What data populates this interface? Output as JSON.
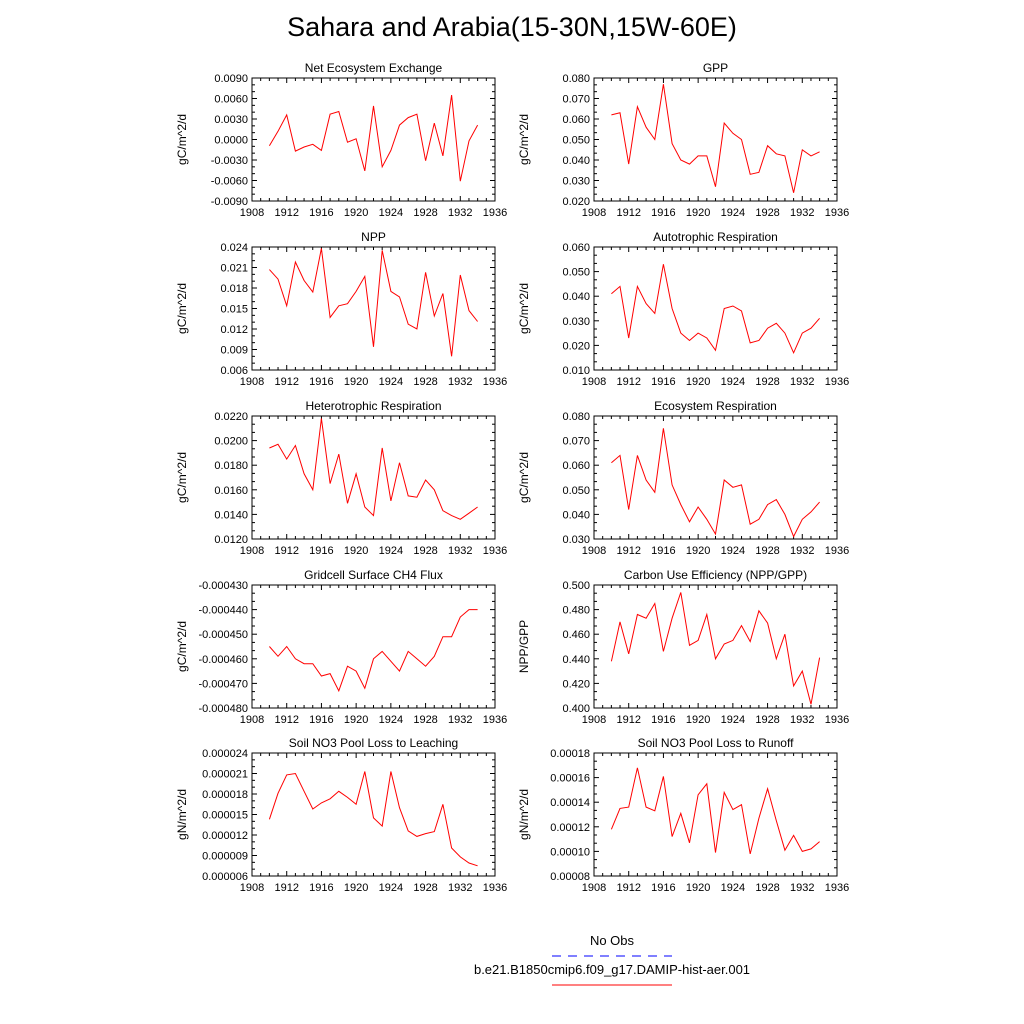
{
  "title": "Sahara and Arabia(15-30N,15W-60E)",
  "colors": {
    "model_line": "#ff0000",
    "obs_line": "#0000ff",
    "axis": "#000000"
  },
  "legend": {
    "obs_label": "No Obs",
    "model_label": "b.e21.B1850cmip6.f09_g17.DAMIP-hist-aer.001"
  },
  "chart_data": [
    {
      "type": "line",
      "title": "Net Ecosystem Exchange",
      "xlabel": "",
      "ylabel": "gC/m^2/d",
      "xlim": [
        1908,
        1936
      ],
      "ylim": [
        -0.009,
        0.009
      ],
      "xticks": [
        1908,
        1912,
        1916,
        1920,
        1924,
        1928,
        1932,
        1936
      ],
      "yticks": [
        -0.009,
        -0.006,
        -0.003,
        0.0,
        0.003,
        0.006,
        0.009
      ],
      "yticklabels": [
        "-0.0090",
        "-0.0060",
        "-0.0030",
        "0.0000",
        "0.0030",
        "0.0060",
        "0.0090"
      ],
      "x": [
        1910,
        1911,
        1912,
        1913,
        1914,
        1915,
        1916,
        1917,
        1918,
        1919,
        1920,
        1921,
        1922,
        1923,
        1924,
        1925,
        1926,
        1927,
        1928,
        1929,
        1930,
        1931,
        1932,
        1933,
        1934
      ],
      "series": [
        {
          "values": [
            -0.0009,
            0.0012,
            0.0036,
            -0.0017,
            -0.0011,
            -0.0007,
            -0.0016,
            0.0037,
            0.0041,
            -0.0004,
            0.0001,
            -0.0046,
            0.0049,
            -0.004,
            -0.0016,
            0.0021,
            0.0032,
            0.0037,
            -0.0031,
            0.0024,
            -0.0024,
            0.0065,
            -0.0061,
            -0.0002,
            0.0021
          ]
        }
      ]
    },
    {
      "type": "line",
      "title": "GPP",
      "xlabel": "",
      "ylabel": "gC/m^2/d",
      "xlim": [
        1908,
        1936
      ],
      "ylim": [
        0.02,
        0.08
      ],
      "xticks": [
        1908,
        1912,
        1916,
        1920,
        1924,
        1928,
        1932,
        1936
      ],
      "yticks": [
        0.02,
        0.03,
        0.04,
        0.05,
        0.06,
        0.07,
        0.08
      ],
      "yticklabels": [
        "0.020",
        "0.030",
        "0.040",
        "0.050",
        "0.060",
        "0.070",
        "0.080"
      ],
      "x": [
        1910,
        1911,
        1912,
        1913,
        1914,
        1915,
        1916,
        1917,
        1918,
        1919,
        1920,
        1921,
        1922,
        1923,
        1924,
        1925,
        1926,
        1927,
        1928,
        1929,
        1930,
        1931,
        1932,
        1933,
        1934
      ],
      "series": [
        {
          "values": [
            0.062,
            0.063,
            0.038,
            0.066,
            0.056,
            0.05,
            0.077,
            0.048,
            0.04,
            0.038,
            0.042,
            0.042,
            0.027,
            0.058,
            0.053,
            0.05,
            0.033,
            0.034,
            0.047,
            0.043,
            0.042,
            0.024,
            0.045,
            0.042,
            0.044
          ]
        }
      ]
    },
    {
      "type": "line",
      "title": "NPP",
      "xlabel": "",
      "ylabel": "gC/m^2/d",
      "xlim": [
        1908,
        1936
      ],
      "ylim": [
        0.006,
        0.024
      ],
      "xticks": [
        1908,
        1912,
        1916,
        1920,
        1924,
        1928,
        1932,
        1936
      ],
      "yticks": [
        0.006,
        0.009,
        0.012,
        0.015,
        0.018,
        0.021,
        0.024
      ],
      "yticklabels": [
        "0.006",
        "0.009",
        "0.012",
        "0.015",
        "0.018",
        "0.021",
        "0.024"
      ],
      "x": [
        1910,
        1911,
        1912,
        1913,
        1914,
        1915,
        1916,
        1917,
        1918,
        1919,
        1920,
        1921,
        1922,
        1923,
        1924,
        1925,
        1926,
        1927,
        1928,
        1929,
        1930,
        1931,
        1932,
        1933,
        1934
      ],
      "series": [
        {
          "values": [
            0.0207,
            0.0193,
            0.0154,
            0.0218,
            0.0191,
            0.0174,
            0.0238,
            0.0137,
            0.0154,
            0.0157,
            0.0175,
            0.0197,
            0.0094,
            0.0235,
            0.0175,
            0.0167,
            0.0127,
            0.012,
            0.0203,
            0.0139,
            0.0172,
            0.008,
            0.0199,
            0.0147,
            0.0131
          ]
        }
      ]
    },
    {
      "type": "line",
      "title": "Autotrophic Respiration",
      "xlabel": "",
      "ylabel": "gC/m^2/d",
      "xlim": [
        1908,
        1936
      ],
      "ylim": [
        0.01,
        0.06
      ],
      "xticks": [
        1908,
        1912,
        1916,
        1920,
        1924,
        1928,
        1932,
        1936
      ],
      "yticks": [
        0.01,
        0.02,
        0.03,
        0.04,
        0.05,
        0.06
      ],
      "yticklabels": [
        "0.010",
        "0.020",
        "0.030",
        "0.040",
        "0.050",
        "0.060"
      ],
      "x": [
        1910,
        1911,
        1912,
        1913,
        1914,
        1915,
        1916,
        1917,
        1918,
        1919,
        1920,
        1921,
        1922,
        1923,
        1924,
        1925,
        1926,
        1927,
        1928,
        1929,
        1930,
        1931,
        1932,
        1933,
        1934
      ],
      "series": [
        {
          "values": [
            0.041,
            0.044,
            0.023,
            0.044,
            0.037,
            0.033,
            0.053,
            0.035,
            0.025,
            0.022,
            0.025,
            0.023,
            0.018,
            0.035,
            0.036,
            0.034,
            0.021,
            0.022,
            0.027,
            0.029,
            0.025,
            0.017,
            0.025,
            0.027,
            0.031
          ]
        }
      ]
    },
    {
      "type": "line",
      "title": "Heterotrophic Respiration",
      "xlabel": "",
      "ylabel": "gC/m^2/d",
      "xlim": [
        1908,
        1936
      ],
      "ylim": [
        0.012,
        0.022
      ],
      "xticks": [
        1908,
        1912,
        1916,
        1920,
        1924,
        1928,
        1932,
        1936
      ],
      "yticks": [
        0.012,
        0.014,
        0.016,
        0.018,
        0.02,
        0.022
      ],
      "yticklabels": [
        "0.0120",
        "0.0140",
        "0.0160",
        "0.0180",
        "0.0200",
        "0.0220"
      ],
      "x": [
        1910,
        1911,
        1912,
        1913,
        1914,
        1915,
        1916,
        1917,
        1918,
        1919,
        1920,
        1921,
        1922,
        1923,
        1924,
        1925,
        1926,
        1927,
        1928,
        1929,
        1930,
        1931,
        1932,
        1933,
        1934
      ],
      "series": [
        {
          "values": [
            0.0194,
            0.0197,
            0.0185,
            0.0196,
            0.0173,
            0.016,
            0.0218,
            0.0165,
            0.0189,
            0.0149,
            0.0173,
            0.0146,
            0.0139,
            0.0194,
            0.0151,
            0.0182,
            0.0155,
            0.0154,
            0.0168,
            0.016,
            0.0143,
            0.0139,
            0.0136,
            0.0141,
            0.0146
          ]
        }
      ]
    },
    {
      "type": "line",
      "title": "Ecosystem Respiration",
      "xlabel": "",
      "ylabel": "gC/m^2/d",
      "xlim": [
        1908,
        1936
      ],
      "ylim": [
        0.03,
        0.08
      ],
      "xticks": [
        1908,
        1912,
        1916,
        1920,
        1924,
        1928,
        1932,
        1936
      ],
      "yticks": [
        0.03,
        0.04,
        0.05,
        0.06,
        0.07,
        0.08
      ],
      "yticklabels": [
        "0.030",
        "0.040",
        "0.050",
        "0.060",
        "0.070",
        "0.080"
      ],
      "x": [
        1910,
        1911,
        1912,
        1913,
        1914,
        1915,
        1916,
        1917,
        1918,
        1919,
        1920,
        1921,
        1922,
        1923,
        1924,
        1925,
        1926,
        1927,
        1928,
        1929,
        1930,
        1931,
        1932,
        1933,
        1934
      ],
      "series": [
        {
          "values": [
            0.061,
            0.064,
            0.042,
            0.064,
            0.054,
            0.049,
            0.075,
            0.052,
            0.044,
            0.037,
            0.043,
            0.038,
            0.032,
            0.054,
            0.051,
            0.052,
            0.036,
            0.038,
            0.044,
            0.046,
            0.04,
            0.031,
            0.038,
            0.041,
            0.045
          ]
        }
      ]
    },
    {
      "type": "line",
      "title": "Gridcell Surface CH4 Flux",
      "xlabel": "",
      "ylabel": "gC/m^2/d",
      "xlim": [
        1908,
        1936
      ],
      "ylim": [
        -0.00048,
        -0.00043
      ],
      "xticks": [
        1908,
        1912,
        1916,
        1920,
        1924,
        1928,
        1932,
        1936
      ],
      "yticks": [
        -0.00048,
        -0.00047,
        -0.00046,
        -0.00045,
        -0.00044,
        -0.00043
      ],
      "yticklabels": [
        "-0.000480",
        "-0.000470",
        "-0.000460",
        "-0.000450",
        "-0.000440",
        "-0.000430"
      ],
      "x": [
        1910,
        1911,
        1912,
        1913,
        1914,
        1915,
        1916,
        1917,
        1918,
        1919,
        1920,
        1921,
        1922,
        1923,
        1924,
        1925,
        1926,
        1927,
        1928,
        1929,
        1930,
        1931,
        1932,
        1933,
        1934
      ],
      "series": [
        {
          "values": [
            -0.000455,
            -0.000459,
            -0.000455,
            -0.00046,
            -0.000462,
            -0.000462,
            -0.000467,
            -0.000466,
            -0.000473,
            -0.000463,
            -0.000465,
            -0.000472,
            -0.00046,
            -0.000457,
            -0.000461,
            -0.000465,
            -0.000457,
            -0.00046,
            -0.000463,
            -0.000459,
            -0.000451,
            -0.000451,
            -0.000443,
            -0.00044,
            -0.00044
          ]
        }
      ]
    },
    {
      "type": "line",
      "title": "Carbon Use Efficiency (NPP/GPP)",
      "xlabel": "",
      "ylabel": "NPP/GPP",
      "xlim": [
        1908,
        1936
      ],
      "ylim": [
        0.4,
        0.5
      ],
      "xticks": [
        1908,
        1912,
        1916,
        1920,
        1924,
        1928,
        1932,
        1936
      ],
      "yticks": [
        0.4,
        0.42,
        0.44,
        0.46,
        0.48,
        0.5
      ],
      "yticklabels": [
        "0.400",
        "0.420",
        "0.440",
        "0.460",
        "0.480",
        "0.500"
      ],
      "x": [
        1910,
        1911,
        1912,
        1913,
        1914,
        1915,
        1916,
        1917,
        1918,
        1919,
        1920,
        1921,
        1922,
        1923,
        1924,
        1925,
        1926,
        1927,
        1928,
        1929,
        1930,
        1931,
        1932,
        1933,
        1934
      ],
      "series": [
        {
          "values": [
            0.438,
            0.47,
            0.444,
            0.476,
            0.473,
            0.485,
            0.446,
            0.473,
            0.494,
            0.451,
            0.455,
            0.476,
            0.44,
            0.452,
            0.455,
            0.467,
            0.454,
            0.479,
            0.469,
            0.44,
            0.46,
            0.418,
            0.43,
            0.403,
            0.441
          ]
        }
      ]
    },
    {
      "type": "line",
      "title": "Soil NO3 Pool Loss to Leaching",
      "xlabel": "",
      "ylabel": "gN/m^2/d",
      "xlim": [
        1908,
        1936
      ],
      "ylim": [
        6e-06,
        2.4e-05
      ],
      "xticks": [
        1908,
        1912,
        1916,
        1920,
        1924,
        1928,
        1932,
        1936
      ],
      "yticks": [
        6e-06,
        9e-06,
        1.2e-05,
        1.5e-05,
        1.8e-05,
        2.1e-05,
        2.4e-05
      ],
      "yticklabels": [
        "0.000006",
        "0.000009",
        "0.000012",
        "0.000015",
        "0.000018",
        "0.000021",
        "0.000024"
      ],
      "x": [
        1910,
        1911,
        1912,
        1913,
        1914,
        1915,
        1916,
        1917,
        1918,
        1919,
        1920,
        1921,
        1922,
        1923,
        1924,
        1925,
        1926,
        1927,
        1928,
        1929,
        1930,
        1931,
        1932,
        1933,
        1934
      ],
      "series": [
        {
          "values": [
            1.43e-05,
            1.81e-05,
            2.08e-05,
            2.1e-05,
            1.84e-05,
            1.58e-05,
            1.67e-05,
            1.73e-05,
            1.84e-05,
            1.75e-05,
            1.65e-05,
            2.13e-05,
            1.45e-05,
            1.33e-05,
            2.13e-05,
            1.6e-05,
            1.26e-05,
            1.18e-05,
            1.22e-05,
            1.25e-05,
            1.65e-05,
            1.01e-05,
            8.8e-06,
            7.9e-06,
            7.5e-06
          ]
        }
      ]
    },
    {
      "type": "line",
      "title": "Soil NO3 Pool Loss to Runoff",
      "xlabel": "",
      "ylabel": "gN/m^2/d",
      "xlim": [
        1908,
        1936
      ],
      "ylim": [
        8e-05,
        0.00018
      ],
      "xticks": [
        1908,
        1912,
        1916,
        1920,
        1924,
        1928,
        1932,
        1936
      ],
      "yticks": [
        8e-05,
        0.0001,
        0.00012,
        0.00014,
        0.00016,
        0.00018
      ],
      "yticklabels": [
        "0.00008",
        "0.00010",
        "0.00012",
        "0.00014",
        "0.00016",
        "0.00018"
      ],
      "x": [
        1910,
        1911,
        1912,
        1913,
        1914,
        1915,
        1916,
        1917,
        1918,
        1919,
        1920,
        1921,
        1922,
        1923,
        1924,
        1925,
        1926,
        1927,
        1928,
        1929,
        1930,
        1931,
        1932,
        1933,
        1934
      ],
      "series": [
        {
          "values": [
            0.000118,
            0.000135,
            0.000136,
            0.000168,
            0.000136,
            0.000133,
            0.000161,
            0.000112,
            0.000131,
            0.000107,
            0.000146,
            0.000155,
            9.9e-05,
            0.000148,
            0.000134,
            0.000138,
            9.8e-05,
            0.000127,
            0.000151,
            0.000125,
            0.000101,
            0.000113,
            0.0001,
            0.000102,
            0.000108
          ]
        }
      ]
    }
  ]
}
